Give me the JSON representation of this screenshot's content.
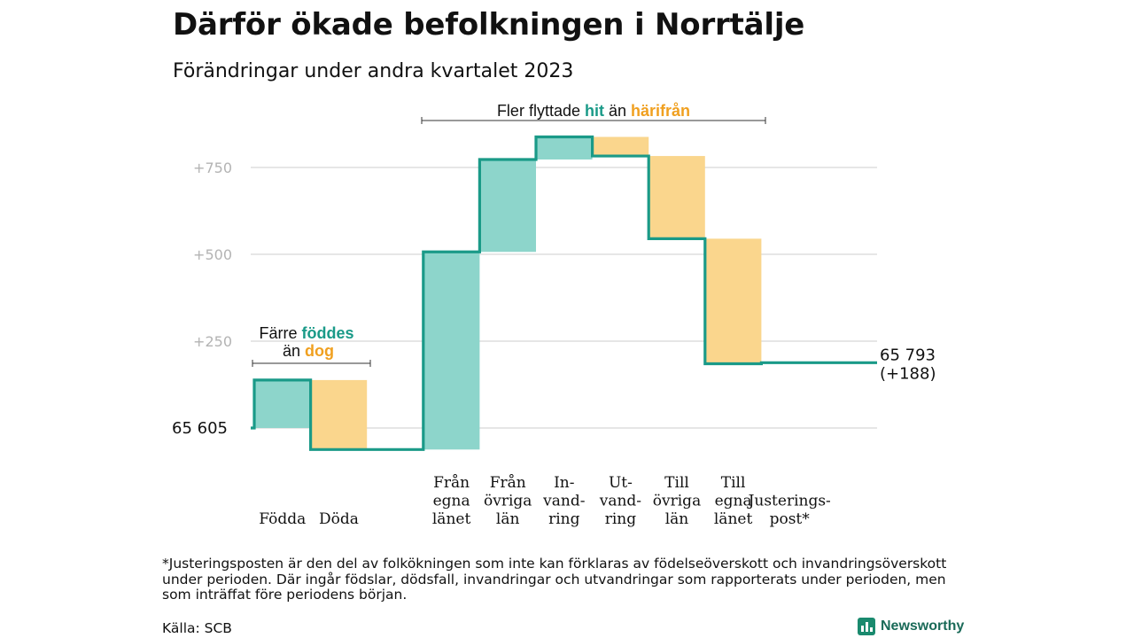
{
  "title": "Därför ökade befolkningen i Norrtälje",
  "subtitle": "Förändringar under andra kvartalet 2023",
  "colors": {
    "inflow": "#8dd5cb",
    "outflow": "#fad68d",
    "line": "#1a9a88",
    "accent_in": "#1a9a88",
    "accent_out": "#f0a020"
  },
  "chart_data": {
    "type": "waterfall",
    "start_value": 65605,
    "start_label": "65  605",
    "end_value": 65793,
    "end_label_line1": "65 793",
    "end_label_line2": "(+188)",
    "y_ticks": [
      "+750",
      "+500",
      "+250"
    ],
    "y_tick_values": [
      750,
      500,
      250
    ],
    "ylim": [
      -80,
      900
    ],
    "steps": [
      {
        "label": [
          "",
          "",
          "Födda"
        ],
        "delta": 138,
        "kind": "in"
      },
      {
        "label": [
          "",
          "",
          "Döda"
        ],
        "delta": -200,
        "kind": "out"
      },
      {
        "label": [],
        "delta": 0,
        "kind": "gap"
      },
      {
        "label": [
          "Från",
          "egna",
          "länet"
        ],
        "delta": 569,
        "kind": "in"
      },
      {
        "label": [
          "Från",
          "övriga",
          "län"
        ],
        "delta": 266,
        "kind": "in"
      },
      {
        "label": [
          "In-",
          "vand-",
          "ring"
        ],
        "delta": 65,
        "kind": "in"
      },
      {
        "label": [
          "Ut-",
          "vand-",
          "ring"
        ],
        "delta": -55,
        "kind": "out"
      },
      {
        "label": [
          "Till",
          "övriga",
          "län"
        ],
        "delta": -238,
        "kind": "out"
      },
      {
        "label": [
          "Till",
          "egna",
          "länet"
        ],
        "delta": -360,
        "kind": "out"
      },
      {
        "label": [
          "",
          "Justerings-",
          "post*"
        ],
        "delta": 3,
        "kind": "adj"
      }
    ],
    "annotation_migration": {
      "prefix": "Fler flyttade ",
      "in_word": "hit",
      "middle": "än",
      "out_word": "härifrån"
    },
    "annotation_births": {
      "line1_prefix": "Färre ",
      "line1_word": "föddes",
      "line2_prefix": "än ",
      "line2_word": "dog"
    }
  },
  "footnote": "*Justeringsposten är den del av folkökningen som inte kan förklaras av födelseöverskott och invandringsöverskott under perioden. Där ingår födslar, dödsfall, invandringar och utvandringar som rapporterats under perioden, men som inträffat före periodens början.",
  "source": "Källa: SCB",
  "brand": "Newsworthy",
  "brand_icon": "bar-chart-icon"
}
